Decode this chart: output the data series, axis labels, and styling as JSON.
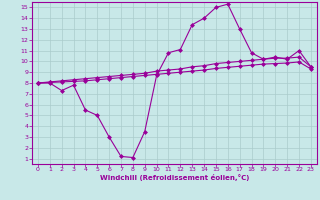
{
  "bg_color": "#c8e8e8",
  "line_color": "#990099",
  "grid_color": "#aacccc",
  "xlabel": "Windchill (Refroidissement éolien,°C)",
  "xlabel_color": "#990099",
  "tick_color": "#990099",
  "xlim": [
    -0.5,
    23.5
  ],
  "ylim": [
    0.5,
    15.5
  ],
  "xticks": [
    0,
    1,
    2,
    3,
    4,
    5,
    6,
    7,
    8,
    9,
    10,
    11,
    12,
    13,
    14,
    15,
    16,
    17,
    18,
    19,
    20,
    21,
    22,
    23
  ],
  "yticks": [
    1,
    2,
    3,
    4,
    5,
    6,
    7,
    8,
    9,
    10,
    11,
    12,
    13,
    14,
    15
  ],
  "curve1_x": [
    0,
    1,
    2,
    3,
    4,
    5,
    6,
    7,
    8,
    9,
    10,
    11,
    12,
    13,
    14,
    15,
    16,
    17,
    18,
    19,
    20,
    21,
    22,
    23
  ],
  "curve1_y": [
    8.0,
    8.0,
    7.3,
    7.8,
    5.5,
    5.0,
    3.0,
    1.2,
    1.1,
    3.5,
    8.7,
    10.8,
    11.1,
    13.4,
    14.0,
    15.0,
    15.3,
    13.0,
    10.8,
    10.2,
    10.4,
    10.2,
    11.0,
    9.5
  ],
  "curve2_x": [
    0,
    1,
    2,
    3,
    4,
    5,
    6,
    7,
    8,
    9,
    10,
    11,
    12,
    13,
    14,
    15,
    16,
    17,
    18,
    19,
    20,
    21,
    22,
    23
  ],
  "curve2_y": [
    8.0,
    8.1,
    8.2,
    8.3,
    8.4,
    8.5,
    8.6,
    8.7,
    8.8,
    8.9,
    9.1,
    9.2,
    9.3,
    9.5,
    9.6,
    9.8,
    9.9,
    10.0,
    10.1,
    10.2,
    10.3,
    10.3,
    10.4,
    9.5
  ],
  "curve3_x": [
    0,
    1,
    2,
    3,
    4,
    5,
    6,
    7,
    8,
    9,
    10,
    11,
    12,
    13,
    14,
    15,
    16,
    17,
    18,
    19,
    20,
    21,
    22,
    23
  ],
  "curve3_y": [
    8.0,
    8.05,
    8.1,
    8.15,
    8.2,
    8.3,
    8.4,
    8.5,
    8.6,
    8.7,
    8.8,
    8.9,
    9.0,
    9.1,
    9.2,
    9.35,
    9.45,
    9.55,
    9.65,
    9.75,
    9.8,
    9.85,
    9.95,
    9.3
  ],
  "marker": "D",
  "markersize": 2.5,
  "linewidth": 0.8
}
